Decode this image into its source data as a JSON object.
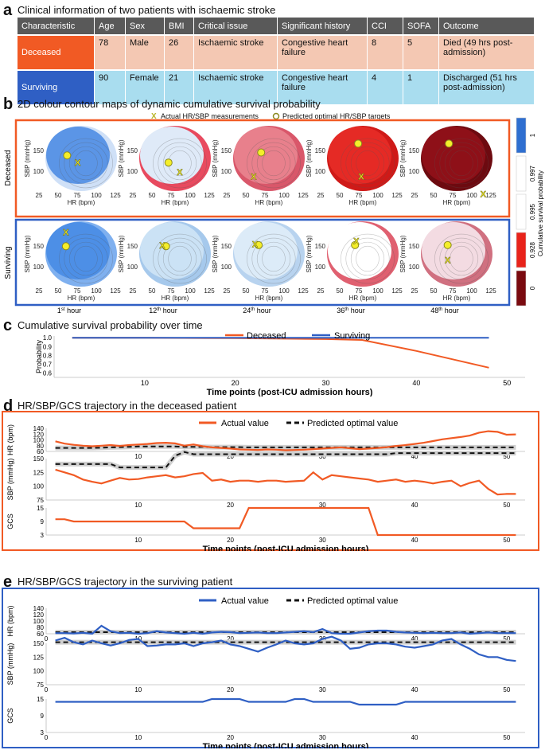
{
  "section_a": {
    "letter": "a",
    "title": "Clinical information of two patients with ischaemic stroke",
    "headers": [
      "Characteristic",
      "Age",
      "Sex",
      "BMI",
      "Critical issue",
      "Significant history",
      "CCI",
      "SOFA",
      "Outcome"
    ],
    "rows": [
      [
        "Deceased",
        "78",
        "Male",
        "26",
        "Ischaemic stroke",
        "Congestive heart failure",
        "8",
        "5",
        "Died (49 hrs post-admission)"
      ],
      [
        "Surviving",
        "90",
        "Female",
        "21",
        "Ischaemic stroke",
        "Congestive heart failure",
        "4",
        "1",
        "Discharged (51 hrs post-admission)"
      ]
    ]
  },
  "section_b": {
    "letter": "b",
    "title": "2D colour contour maps of dynamic cumulative survival probability",
    "legend_actual": "Actual HR/SBP measurements",
    "legend_predicted": "Predicted optimal HR/SBP targets",
    "marker_x": "X",
    "row_labels": [
      "Deceased",
      "Surviving"
    ],
    "time_labels": [
      {
        "num": "1",
        "sup": "st",
        "rest": " hour"
      },
      {
        "num": "12",
        "sup": "th",
        "rest": " hour"
      },
      {
        "num": "24",
        "sup": "th",
        "rest": " hour"
      },
      {
        "num": "36",
        "sup": "th",
        "rest": " hour"
      },
      {
        "num": "48",
        "sup": "th",
        "rest": " hour"
      }
    ],
    "x_axis_label": "HR (bpm)",
    "y_axis_label": "SBP (mmHg)",
    "x_ticks": [
      "25",
      "50",
      "75",
      "100",
      "125"
    ],
    "y_ticks": [
      "100",
      "150"
    ],
    "colorbar_title": "Cumulative survival probability",
    "colorbar_labels": [
      "1",
      "0.997",
      "0.995",
      "0.928",
      "0"
    ],
    "colorbar_colors": [
      "#2f6fd0",
      "#ffffff",
      "#ffffff",
      "#e8231b",
      "#7a0a10"
    ],
    "maps": {
      "deceased": [
        {
          "fill": "#5b95e6",
          "edge": "#cfe0f7",
          "dot": [
            60,
            140
          ],
          "x": [
            77,
            128
          ]
        },
        {
          "fill": "#dfeaf8",
          "edge": "#e84a5f",
          "dot": [
            72,
            128
          ],
          "x": [
            90,
            112
          ]
        },
        {
          "fill": "#e8808c",
          "edge": "#d9576a",
          "dot": [
            70,
            145
          ],
          "x": [
            58,
            105
          ]
        },
        {
          "fill": "#e52a25",
          "edge": "#cf1a18",
          "dot": [
            75,
            160
          ],
          "x": [
            80,
            105
          ]
        },
        {
          "fill": "#8e1018",
          "edge": "#6d0a10",
          "dot": [
            70,
            160
          ],
          "x": [
            125,
            75
          ]
        }
      ],
      "surviving": [
        {
          "fill": "#4d8fe6",
          "edge": "#7fb0ef",
          "dot": [
            58,
            148
          ],
          "x": [
            58,
            172
          ]
        },
        {
          "fill": "#cbe2f5",
          "edge": "#a6c9ec",
          "dot": [
            68,
            148
          ],
          "x": [
            62,
            150
          ]
        },
        {
          "fill": "#dcebf8",
          "edge": "#b8d3ef",
          "dot": [
            66,
            150
          ],
          "x": [
            60,
            152
          ]
        },
        {
          "fill": "#ffffff",
          "edge": "#e06070",
          "dot": [
            70,
            150
          ],
          "x": [
            72,
            157
          ]
        },
        {
          "fill": "#f3dbe2",
          "edge": "#d07080",
          "dot": [
            68,
            150
          ],
          "x": [
            68,
            125
          ]
        }
      ]
    }
  },
  "section_c": {
    "letter": "c",
    "title": "Cumulative survival probability over time",
    "colors": {
      "deceased": "#f15a24",
      "surviving": "#2f5fc4"
    }
  },
  "section_d": {
    "letter": "d",
    "title": "HR/SBP/GCS trajectory in the deceased patient"
  },
  "section_e": {
    "letter": "e",
    "title": "HR/SBP/GCS trajectory in the surviving patient"
  },
  "chart_data": [
    {
      "type": "line",
      "id": "c",
      "title": "Cumulative survival probability over time",
      "xlabel": "Time points (post-ICU admission hours)",
      "ylabel": "Probability",
      "xlim": [
        0,
        52
      ],
      "ylim": [
        0.6,
        1.0
      ],
      "xticks": [
        10,
        20,
        30,
        40,
        50
      ],
      "yticks": [
        "0.6",
        "0.7",
        "0.8",
        "0.9",
        "1.0"
      ],
      "legend": [
        "Deceased",
        "Surviving"
      ],
      "series": [
        {
          "name": "Deceased",
          "color": "#f15a24",
          "x": [
            2,
            10,
            20,
            30,
            34,
            40,
            48
          ],
          "y": [
            1.0,
            1.0,
            0.995,
            0.985,
            0.975,
            0.85,
            0.66
          ]
        },
        {
          "name": "Surviving",
          "color": "#2f5fc4",
          "x": [
            2,
            48
          ],
          "y": [
            1.0,
            1.0
          ]
        }
      ]
    },
    {
      "type": "line",
      "id": "d",
      "title": "HR/SBP/GCS trajectory in the deceased patient",
      "xlabel": "Time points (post-ICU admission hours)",
      "xlim": [
        0,
        52
      ],
      "xticks": [
        10,
        20,
        30,
        40,
        50
      ],
      "legend": [
        "Actual value",
        "Predicted optimal value"
      ],
      "panels": [
        {
          "ylabel": "HR (bpm)",
          "ylim": [
            60,
            140
          ],
          "yticks": [
            "60",
            "80",
            "100",
            "120",
            "140"
          ],
          "actual": [
            95,
            87,
            83,
            80,
            78,
            80,
            82,
            79,
            82,
            84,
            86,
            89,
            90,
            88,
            80,
            84,
            78,
            74,
            72,
            70,
            67,
            66,
            65,
            67,
            66,
            64,
            65,
            66,
            68,
            70,
            72,
            74,
            71,
            68,
            70,
            72,
            75,
            79,
            82,
            86,
            90,
            96,
            102,
            106,
            110,
            115,
            125,
            130,
            128,
            118,
            119
          ],
          "predicted": [
            72,
            72,
            72,
            72,
            72,
            73,
            74,
            75,
            76,
            77,
            77,
            77,
            77,
            77,
            76,
            76,
            76,
            75,
            75,
            75,
            75,
            74,
            74,
            74,
            74,
            74,
            74,
            74,
            74,
            74,
            74,
            74,
            74,
            74,
            74,
            74,
            74,
            74,
            74,
            74,
            74,
            74,
            74,
            74,
            74,
            74,
            74,
            74,
            74,
            74,
            74
          ]
        },
        {
          "ylabel": "SBP (mmHg)",
          "ylim": [
            75,
            150
          ],
          "yticks": [
            "75",
            "100",
            "125",
            "150"
          ],
          "actual": [
            130,
            125,
            120,
            112,
            108,
            105,
            110,
            115,
            112,
            113,
            116,
            118,
            120,
            116,
            118,
            122,
            124,
            110,
            112,
            108,
            110,
            110,
            108,
            110,
            110,
            108,
            109,
            110,
            125,
            112,
            120,
            118,
            116,
            114,
            112,
            108,
            110,
            112,
            108,
            110,
            108,
            105,
            108,
            110,
            100,
            106,
            110,
            95,
            85,
            86,
            86
          ],
          "predicted": [
            140,
            140,
            140,
            140,
            140,
            140,
            140,
            134,
            134,
            134,
            134,
            134,
            134,
            155,
            162,
            158,
            158,
            158,
            158,
            158,
            158,
            158,
            158,
            158,
            158,
            158,
            158,
            158,
            158,
            158,
            158,
            158,
            158,
            158,
            158,
            158,
            158,
            160,
            160,
            160,
            160,
            160,
            160,
            160,
            160,
            160,
            160,
            160,
            160,
            160,
            160
          ]
        },
        {
          "ylabel": "GCS",
          "ylim": [
            3,
            15
          ],
          "yticks": [
            "3",
            "9",
            "15"
          ],
          "actual": [
            10,
            10,
            9,
            9,
            9,
            9,
            9,
            9,
            9,
            9,
            9,
            9,
            9,
            9,
            9,
            6,
            6,
            6,
            6,
            6,
            6,
            15,
            15,
            15,
            15,
            15,
            15,
            15,
            15,
            15,
            15,
            15,
            15,
            15,
            15,
            3,
            3,
            3,
            3,
            3,
            3,
            3,
            3,
            3,
            3,
            3,
            3,
            3,
            3,
            3,
            3
          ],
          "predicted": []
        }
      ]
    },
    {
      "type": "line",
      "id": "e",
      "title": "HR/SBP/GCS trajectory in the surviving patient",
      "xlabel": "Time points (post-ICU admission hours)",
      "xlim": [
        0,
        52
      ],
      "xticks": [
        0,
        10,
        20,
        30,
        40,
        50
      ],
      "legend": [
        "Actual value",
        "Predicted optimal value"
      ],
      "panels": [
        {
          "ylabel": "HR (bpm)",
          "ylim": [
            60,
            140
          ],
          "yticks": [
            "60",
            "80",
            "100",
            "120",
            "140"
          ],
          "actual": [
            62,
            62,
            61,
            63,
            60,
            85,
            68,
            62,
            63,
            60,
            62,
            68,
            64,
            62,
            60,
            63,
            60,
            64,
            66,
            65,
            62,
            63,
            64,
            62,
            62,
            64,
            66,
            68,
            65,
            75,
            62,
            60,
            60,
            64,
            68,
            70,
            70,
            66,
            64,
            63,
            62,
            63,
            62,
            62,
            64,
            60,
            62,
            64,
            62,
            62,
            62
          ],
          "predicted": [
            65,
            65,
            65,
            65,
            65,
            65,
            65,
            65,
            65,
            65,
            65,
            65,
            65,
            65,
            65,
            65,
            65,
            65,
            65,
            65,
            65,
            65,
            65,
            65,
            65,
            65,
            65,
            65,
            65,
            65,
            65,
            65,
            65,
            65,
            65,
            65,
            65,
            65,
            65,
            65,
            65,
            65,
            65,
            65,
            65,
            65,
            65,
            65,
            65,
            65,
            65
          ]
        },
        {
          "ylabel": "SBP (mmHg)",
          "ylim": [
            75,
            150
          ],
          "yticks": [
            "75",
            "100",
            "125",
            "150"
          ],
          "actual": [
            155,
            160,
            152,
            148,
            155,
            150,
            146,
            150,
            156,
            158,
            145,
            146,
            148,
            148,
            150,
            145,
            150,
            152,
            155,
            148,
            145,
            140,
            135,
            142,
            148,
            155,
            150,
            148,
            150,
            158,
            162,
            155,
            140,
            142,
            148,
            150,
            150,
            148,
            144,
            142,
            145,
            148,
            155,
            158,
            148,
            140,
            130,
            125,
            125,
            120,
            118
          ],
          "predicted": [
            152,
            152,
            152,
            152,
            152,
            152,
            152,
            152,
            152,
            152,
            152,
            152,
            152,
            152,
            152,
            152,
            152,
            152,
            152,
            152,
            152,
            152,
            152,
            152,
            152,
            152,
            152,
            152,
            152,
            152,
            152,
            152,
            152,
            152,
            152,
            152,
            152,
            152,
            152,
            152,
            152,
            152,
            152,
            152,
            152,
            152,
            152,
            152,
            152,
            152,
            152
          ]
        },
        {
          "ylabel": "GCS",
          "ylim": [
            3,
            15
          ],
          "yticks": [
            "3",
            "9",
            "15"
          ],
          "actual": [
            14,
            14,
            14,
            14,
            14,
            14,
            14,
            14,
            14,
            14,
            14,
            14,
            14,
            14,
            14,
            14,
            14,
            15,
            15,
            15,
            15,
            14,
            14,
            14,
            14,
            14,
            15,
            15,
            14,
            14,
            14,
            14,
            14,
            13,
            13,
            13,
            13,
            13,
            14,
            14,
            14,
            14,
            14,
            14,
            14,
            14,
            14,
            14,
            14,
            14,
            14
          ],
          "predicted": []
        }
      ]
    }
  ]
}
